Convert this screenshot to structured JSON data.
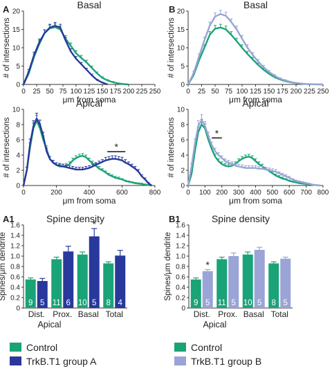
{
  "colors": {
    "control": "#1aa377",
    "group_a": "#28389b",
    "group_b": "#9aa4d6",
    "axis": "#333333"
  },
  "legend_a": {
    "control": "Control",
    "group": "TrkB.T1 group A"
  },
  "legend_b": {
    "control": "Control",
    "group": "TrkB.T1 group B"
  },
  "chart_data": [
    {
      "id": "A-basal",
      "panel_label": "A",
      "type": "line",
      "title": "Basal",
      "xlabel": "μm from soma",
      "ylabel": "# of intersections",
      "xlim": [
        0,
        250
      ],
      "ylim": [
        0,
        20
      ],
      "xticks": [
        "0",
        "25",
        "50",
        "75",
        "100",
        "125",
        "150",
        "175",
        "200",
        "225",
        "250"
      ],
      "yticks": [
        "0",
        "5",
        "10",
        "15",
        "20"
      ],
      "series": [
        {
          "name": "Control",
          "color": "control",
          "x": [
            0,
            10,
            20,
            30,
            40,
            50,
            60,
            70,
            80,
            90,
            100,
            110,
            120,
            130,
            140,
            150,
            160,
            170,
            180,
            190,
            200
          ],
          "y": [
            0,
            3,
            7.5,
            11,
            14,
            15.3,
            15.6,
            15,
            12.5,
            10.5,
            8.5,
            7.2,
            6,
            4.5,
            3,
            1.8,
            1.1,
            0.6,
            0.3,
            0.1,
            0
          ],
          "err": [
            0,
            0.6,
            0.8,
            0.9,
            0.9,
            0.9,
            0.9,
            0.9,
            0.8,
            0.8,
            0.7,
            0.7,
            0.6,
            0.5,
            0.4,
            0.3,
            0.2,
            0.2,
            0.1,
            0.1,
            0
          ]
        },
        {
          "name": "TrkB.T1 group A",
          "color": "group_a",
          "x": [
            0,
            10,
            20,
            30,
            40,
            50,
            60,
            70,
            80,
            90,
            100,
            110,
            120,
            130,
            140,
            150,
            160
          ],
          "y": [
            0,
            3.5,
            8,
            11.5,
            14,
            15.5,
            16,
            15.5,
            12,
            9,
            7,
            5.5,
            4,
            2.5,
            1.2,
            0.5,
            0
          ],
          "err": [
            0,
            0.6,
            0.8,
            0.9,
            0.9,
            0.9,
            0.9,
            0.9,
            0.8,
            0.7,
            0.6,
            0.5,
            0.4,
            0.3,
            0.2,
            0.1,
            0
          ]
        }
      ]
    },
    {
      "id": "A-apical",
      "type": "line",
      "title": "Apical",
      "xlabel": "μm from soma",
      "ylabel": "# of intersections",
      "xlim": [
        0,
        800
      ],
      "ylim": [
        0,
        10
      ],
      "xticks": [
        "0",
        "200",
        "400",
        "600",
        "800"
      ],
      "yticks": [
        "0",
        "2",
        "4",
        "6",
        "8",
        "10"
      ],
      "annotation": "*",
      "sig_range": [
        510,
        620
      ],
      "series": [
        {
          "name": "Control",
          "color": "control",
          "x": [
            0,
            20,
            40,
            60,
            80,
            100,
            120,
            140,
            160,
            180,
            200,
            220,
            240,
            260,
            280,
            300,
            320,
            340,
            360,
            380,
            400,
            420,
            440,
            460,
            480,
            500,
            520,
            540,
            560,
            580,
            600,
            620,
            640,
            660,
            680,
            700,
            720,
            740,
            760,
            780
          ],
          "y": [
            0,
            2,
            5,
            7.5,
            8.5,
            7.5,
            6,
            4.8,
            3.5,
            3,
            2.7,
            2.5,
            2.5,
            2.6,
            2.8,
            3.3,
            3.6,
            3.8,
            3.9,
            3.7,
            3.3,
            2.9,
            2.6,
            2.2,
            2,
            1.7,
            1.4,
            1.2,
            1,
            0.9,
            0.8,
            0.6,
            0.5,
            0.4,
            0.3,
            0.25,
            0.2,
            0.1,
            0.05,
            0
          ],
          "err": [
            0,
            0.4,
            0.6,
            0.7,
            0.7,
            0.6,
            0.5,
            0.4,
            0.3,
            0.3,
            0.3,
            0.3,
            0.3,
            0.3,
            0.3,
            0.3,
            0.3,
            0.3,
            0.3,
            0.3,
            0.3,
            0.3,
            0.3,
            0.3,
            0.2,
            0.2,
            0.2,
            0.2,
            0.2,
            0.2,
            0.1,
            0.1,
            0.1,
            0.1,
            0.1,
            0.1,
            0.1,
            0.1,
            0,
            0
          ]
        },
        {
          "name": "TrkB.T1 group A",
          "color": "group_a",
          "x": [
            0,
            20,
            40,
            60,
            80,
            100,
            120,
            140,
            160,
            180,
            200,
            220,
            240,
            260,
            280,
            300,
            320,
            340,
            360,
            380,
            400,
            420,
            440,
            460,
            480,
            500,
            520,
            540,
            560,
            580,
            600,
            620,
            640,
            660,
            680,
            700,
            720,
            740,
            760,
            780
          ],
          "y": [
            0,
            2,
            5.5,
            7.8,
            8.8,
            8,
            6.5,
            4.5,
            3.5,
            3,
            2.7,
            2.6,
            2.5,
            2.4,
            2.3,
            2.2,
            2.1,
            2.1,
            2.1,
            2.2,
            2.3,
            2.5,
            2.7,
            2.9,
            3.1,
            3.3,
            3.4,
            3.5,
            3.5,
            3.4,
            3.3,
            3,
            2.8,
            2.5,
            2.2,
            1.8,
            1.2,
            0.8,
            0.3,
            0
          ],
          "err": [
            0,
            0.4,
            0.6,
            0.7,
            0.7,
            0.6,
            0.5,
            0.4,
            0.3,
            0.3,
            0.3,
            0.3,
            0.3,
            0.3,
            0.3,
            0.3,
            0.3,
            0.3,
            0.3,
            0.3,
            0.3,
            0.3,
            0.3,
            0.3,
            0.3,
            0.4,
            0.4,
            0.4,
            0.4,
            0.4,
            0.4,
            0.4,
            0.3,
            0.3,
            0.3,
            0.3,
            0.2,
            0.2,
            0.1,
            0
          ]
        }
      ]
    },
    {
      "id": "B-basal",
      "panel_label": "B",
      "type": "line",
      "title": "Basal",
      "xlabel": "μm from soma",
      "ylabel": "# of intersections",
      "xlim": [
        0,
        250
      ],
      "ylim": [
        0,
        20
      ],
      "xticks": [
        "0",
        "25",
        "50",
        "75",
        "100",
        "125",
        "150",
        "175",
        "200",
        "225",
        "250"
      ],
      "yticks": [
        "0",
        "5",
        "10",
        "15",
        "20"
      ],
      "series": [
        {
          "name": "Control",
          "color": "control",
          "x": [
            0,
            10,
            20,
            30,
            40,
            50,
            60,
            70,
            80,
            90,
            100,
            110,
            120,
            130,
            140,
            150,
            160,
            170,
            180,
            190,
            200,
            210,
            220,
            230,
            240,
            250
          ],
          "y": [
            0,
            2.5,
            6.5,
            10,
            13.5,
            15.2,
            15.5,
            15,
            13.5,
            11.8,
            10,
            8.3,
            6.8,
            5.3,
            4,
            2.9,
            2,
            1.4,
            0.9,
            0.6,
            0.35,
            0.2,
            0.1,
            0.05,
            0.02,
            0
          ],
          "err": [
            0,
            0.5,
            0.7,
            0.8,
            0.9,
            0.9,
            0.9,
            0.9,
            0.9,
            0.8,
            0.8,
            0.7,
            0.6,
            0.5,
            0.4,
            0.3,
            0.2,
            0.2,
            0.1,
            0.1,
            0.1,
            0,
            0,
            0,
            0,
            0
          ]
        },
        {
          "name": "TrkB.T1 group B",
          "color": "group_b",
          "x": [
            0,
            10,
            20,
            30,
            40,
            50,
            60,
            70,
            80,
            90,
            100,
            110,
            120,
            130,
            140,
            150,
            160,
            170,
            180,
            190,
            200,
            210,
            220,
            230,
            240,
            250
          ],
          "y": [
            0,
            3,
            7.5,
            12,
            16,
            18.5,
            19.2,
            18.7,
            17,
            15,
            12.5,
            10,
            8,
            6.2,
            4.7,
            3.4,
            2.4,
            1.6,
            1.1,
            0.7,
            0.4,
            0.25,
            0.12,
            0.06,
            0.02,
            0
          ],
          "err": [
            0,
            0.6,
            0.8,
            0.9,
            1,
            1,
            1,
            1,
            0.9,
            0.9,
            0.8,
            0.8,
            0.7,
            0.6,
            0.5,
            0.4,
            0.3,
            0.2,
            0.2,
            0.1,
            0.1,
            0,
            0,
            0,
            0,
            0
          ]
        }
      ]
    },
    {
      "id": "B-apical",
      "type": "line",
      "title": "Apical",
      "xlabel": "μm from soma",
      "ylabel": "# of intersections",
      "xlim": [
        0,
        800
      ],
      "ylim": [
        0,
        10
      ],
      "xticks": [
        "0",
        "100",
        "200",
        "300",
        "400",
        "500",
        "600",
        "700",
        "800"
      ],
      "yticks": [
        "0",
        "2",
        "4",
        "6",
        "8",
        "10"
      ],
      "annotation": "*",
      "sig_range": [
        140,
        200
      ],
      "series": [
        {
          "name": "Control",
          "color": "control",
          "x": [
            0,
            20,
            40,
            60,
            80,
            100,
            120,
            140,
            160,
            180,
            200,
            220,
            240,
            260,
            280,
            300,
            320,
            340,
            360,
            380,
            400,
            420,
            440,
            460,
            480,
            500,
            520,
            540,
            560,
            580,
            600,
            620,
            640,
            660,
            680,
            700,
            720,
            740,
            760,
            780
          ],
          "y": [
            0,
            1.5,
            4.5,
            7,
            8,
            7.5,
            6,
            4.8,
            3.8,
            3.2,
            2.8,
            2.6,
            2.5,
            2.6,
            2.8,
            3.2,
            3.5,
            3.7,
            3.8,
            3.6,
            3.2,
            2.8,
            2.5,
            2.2,
            1.9,
            1.6,
            1.3,
            1.1,
            0.9,
            0.8,
            0.6,
            0.5,
            0.4,
            0.3,
            0.25,
            0.2,
            0.15,
            0.1,
            0.05,
            0
          ],
          "err": [
            0,
            0.4,
            0.6,
            0.7,
            0.7,
            0.6,
            0.5,
            0.4,
            0.3,
            0.3,
            0.3,
            0.3,
            0.3,
            0.3,
            0.3,
            0.3,
            0.3,
            0.3,
            0.3,
            0.3,
            0.3,
            0.3,
            0.3,
            0.2,
            0.2,
            0.2,
            0.2,
            0.2,
            0.2,
            0.1,
            0.1,
            0.1,
            0.1,
            0.1,
            0.1,
            0.1,
            0,
            0,
            0,
            0
          ]
        },
        {
          "name": "TrkB.T1 group B",
          "color": "group_b",
          "x": [
            0,
            20,
            40,
            60,
            80,
            100,
            120,
            140,
            160,
            180,
            200,
            220,
            240,
            260,
            280,
            300,
            320,
            340,
            360,
            380,
            400,
            420,
            440,
            460,
            480,
            500,
            520,
            540,
            560,
            580,
            600,
            620,
            640,
            660,
            680,
            700,
            720,
            740,
            760,
            780
          ],
          "y": [
            0,
            2.5,
            5.5,
            7.8,
            8.6,
            7.8,
            6.5,
            5.3,
            4.5,
            4,
            3.6,
            3.2,
            3,
            2.8,
            2.6,
            2.5,
            2.4,
            2.3,
            2.3,
            2.3,
            2.3,
            2.2,
            2.2,
            2.1,
            2,
            1.9,
            1.8,
            1.6,
            1.4,
            1.2,
            1,
            0.8,
            0.6,
            0.5,
            0.4,
            0.3,
            0.2,
            0.1,
            0.05,
            0
          ],
          "err": [
            0,
            0.4,
            0.6,
            0.7,
            0.7,
            0.6,
            0.5,
            0.4,
            0.4,
            0.3,
            0.3,
            0.3,
            0.3,
            0.3,
            0.3,
            0.3,
            0.3,
            0.3,
            0.3,
            0.3,
            0.3,
            0.3,
            0.3,
            0.3,
            0.3,
            0.3,
            0.3,
            0.2,
            0.2,
            0.2,
            0.2,
            0.1,
            0.1,
            0.1,
            0.1,
            0.1,
            0.1,
            0,
            0,
            0
          ]
        }
      ]
    },
    {
      "id": "A1",
      "panel_label": "A1",
      "type": "bar",
      "title": "Spine density",
      "ylabel": "Spines/μm dendrite",
      "ylim": [
        0,
        1.6
      ],
      "yticks": [
        "0",
        "0.2",
        "0.4",
        "0.6",
        "0.8",
        "1.0",
        "1.2",
        "1.4",
        "1.6"
      ],
      "groups": [
        {
          "label": "Dist.",
          "control": 0.55,
          "control_err": 0.03,
          "control_n": "9",
          "treat": 0.52,
          "treat_err": 0.05,
          "treat_n": "5",
          "sig": ""
        },
        {
          "label": "Prox.",
          "control": 0.94,
          "control_err": 0.04,
          "control_n": "11",
          "treat": 1.09,
          "treat_err": 0.1,
          "treat_n": "6",
          "sig": ""
        },
        {
          "label": "Basal",
          "control": 1.03,
          "control_err": 0.05,
          "control_n": "10",
          "treat": 1.38,
          "treat_err": 0.15,
          "treat_n": "5",
          "sig": "*"
        },
        {
          "label": "Total",
          "control": 0.86,
          "control_err": 0.03,
          "control_n": "8",
          "treat": 1.01,
          "treat_err": 0.1,
          "treat_n": "4",
          "sig": ""
        }
      ],
      "group_label": "Apical"
    },
    {
      "id": "B1",
      "panel_label": "B1",
      "type": "bar",
      "title": "Spine density",
      "ylabel": "Spines/μm dendrite",
      "ylim": [
        0,
        1.6
      ],
      "yticks": [
        "0",
        "0.2",
        "0.4",
        "0.6",
        "0.8",
        "1.0",
        "1.2",
        "1.4",
        "1.6"
      ],
      "groups": [
        {
          "label": "Dist.",
          "control": 0.55,
          "control_err": 0.03,
          "control_n": "9",
          "treat": 0.71,
          "treat_err": 0.03,
          "treat_n": "5",
          "sig": "*"
        },
        {
          "label": "Prox.",
          "control": 0.94,
          "control_err": 0.04,
          "control_n": "11",
          "treat": 1.0,
          "treat_err": 0.06,
          "treat_n": "5",
          "sig": ""
        },
        {
          "label": "Basal",
          "control": 1.03,
          "control_err": 0.05,
          "control_n": "10",
          "treat": 1.12,
          "treat_err": 0.05,
          "treat_n": "5",
          "sig": ""
        },
        {
          "label": "Total",
          "control": 0.86,
          "control_err": 0.03,
          "control_n": "8",
          "treat": 0.95,
          "treat_err": 0.03,
          "treat_n": "5",
          "sig": ""
        }
      ],
      "group_label": "Apical"
    }
  ]
}
